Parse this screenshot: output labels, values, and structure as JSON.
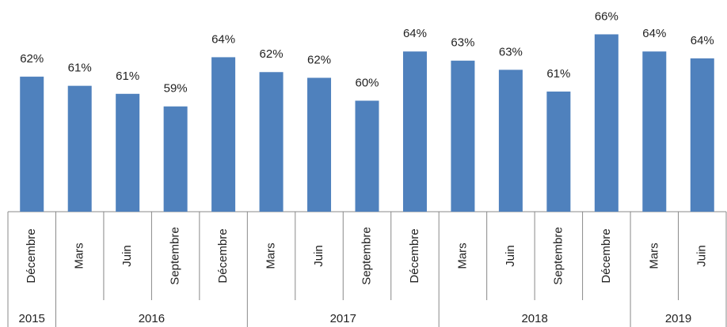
{
  "chart_data": {
    "type": "bar",
    "categories": [
      "Décembre",
      "Mars",
      "Juin",
      "Septembre",
      "Décembre",
      "Mars",
      "Juin",
      "Septembre",
      "Décembre",
      "Mars",
      "Juin",
      "Septembre",
      "Décembre",
      "Mars",
      "Juin"
    ],
    "year_groups": [
      {
        "label": "2015",
        "count": 1
      },
      {
        "label": "2016",
        "count": 4
      },
      {
        "label": "2017",
        "count": 4
      },
      {
        "label": "2018",
        "count": 4
      },
      {
        "label": "2019",
        "count": 2
      }
    ],
    "values": [
      62.0,
      61.2,
      60.5,
      59.4,
      63.7,
      62.4,
      61.9,
      59.9,
      64.2,
      63.4,
      62.6,
      60.7,
      65.7,
      64.2,
      63.6
    ],
    "value_labels": [
      "62%",
      "61%",
      "61%",
      "59%",
      "64%",
      "62%",
      "62%",
      "60%",
      "64%",
      "63%",
      "63%",
      "61%",
      "66%",
      "64%",
      "64%"
    ],
    "color": "#4f81bd",
    "ylim": [
      50.2,
      68.7
    ]
  }
}
